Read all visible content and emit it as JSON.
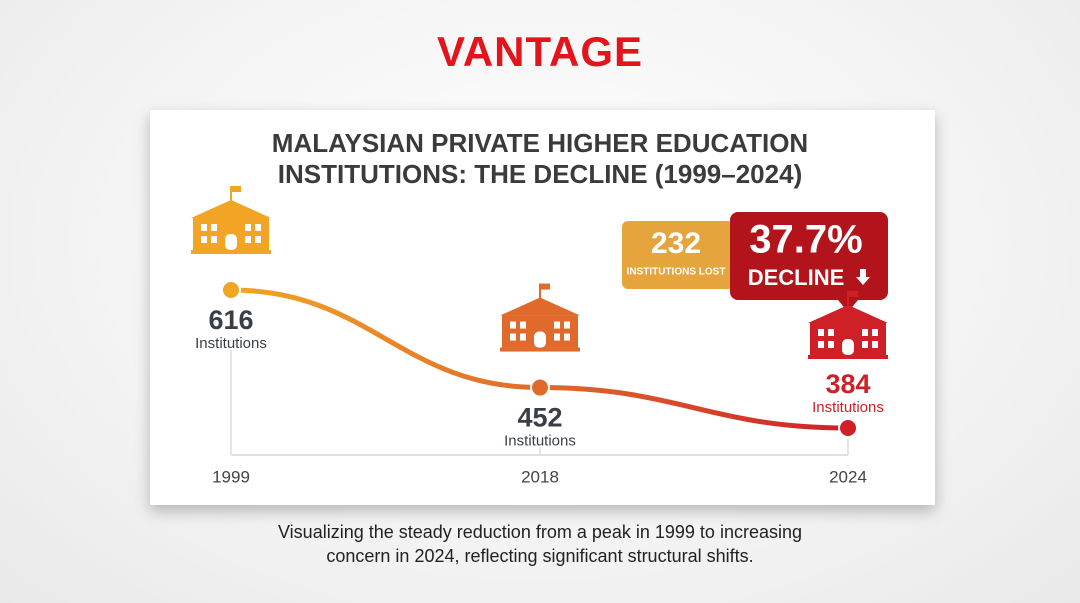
{
  "brand": "VANTAGE",
  "chart_data": {
    "type": "line",
    "title": "MALAYSIAN PRIVATE HIGHER EDUCATION INSTITUTIONS: THE DECLINE (1999–2024)",
    "categories": [
      "1999",
      "2018",
      "2024"
    ],
    "values": [
      616,
      452,
      384
    ],
    "value_unit": "Institutions",
    "colors": [
      "#f2a524",
      "#e06a2c",
      "#cf1f27"
    ],
    "annotations": {
      "lost_value": "232",
      "lost_label": "INSTITUTIONS LOST",
      "decline_value": "37.7%",
      "decline_label": "DECLINE"
    }
  },
  "caption": "Visualizing the steady reduction from a peak in 1999 to increasing concern in 2024, reflecting significant structural shifts."
}
